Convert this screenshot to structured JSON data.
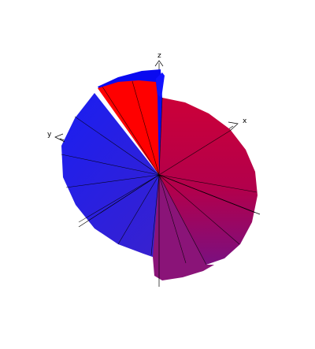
{
  "axes": {
    "x_label": "x",
    "y_label": "y",
    "z_label": "z"
  },
  "colors": {
    "warm": "#c8003a",
    "cool": "#2a1ed8",
    "top_fill": "#ff0000",
    "cap_blue": "#0000ff",
    "line": "#000000",
    "background": "#ffffff"
  }
}
